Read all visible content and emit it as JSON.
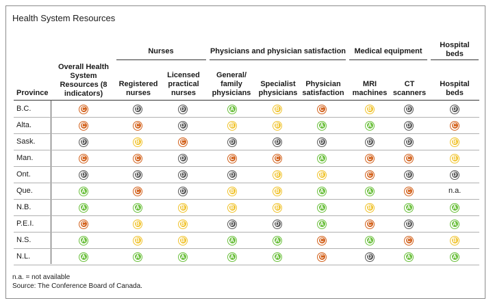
{
  "title": "Health System Resources",
  "groups": {
    "nurses": "Nurses",
    "physicians": "Physicians and physician satisfaction",
    "equipment": "Medical equipment",
    "hospital": "Hospital beds"
  },
  "columns": {
    "province": "Province",
    "overall": "Overall Health System Resources (8 indicators)",
    "registered": "Registered nurses",
    "licensed": "Licensed practical nurses",
    "general": "General/ family physicians",
    "specialist": "Specialist physicians",
    "satisfaction": "Physician satisfaction",
    "mri": "MRI machines",
    "ct": "CT scanners",
    "beds": "Hospital beds"
  },
  "colors": {
    "A": "#6abf3b",
    "B": "#f0c229",
    "C": "#d2601a",
    "D": "#555555"
  },
  "rows": [
    {
      "province": "B.C.",
      "grades": [
        "C",
        "D",
        "D",
        "A",
        "B",
        "C",
        "B",
        "D",
        "D"
      ]
    },
    {
      "province": "Alta.",
      "grades": [
        "C",
        "C",
        "D",
        "B",
        "B",
        "A",
        "A",
        "D",
        "C"
      ]
    },
    {
      "province": "Sask.",
      "grades": [
        "D",
        "B",
        "C",
        "D",
        "D",
        "D",
        "D",
        "D",
        "B"
      ]
    },
    {
      "province": "Man.",
      "grades": [
        "C",
        "C",
        "D",
        "C",
        "C",
        "A",
        "C",
        "C",
        "B"
      ]
    },
    {
      "province": "Ont.",
      "grades": [
        "D",
        "D",
        "D",
        "D",
        "B",
        "B",
        "C",
        "D",
        "D"
      ]
    },
    {
      "province": "Que.",
      "grades": [
        "A",
        "C",
        "D",
        "B",
        "B",
        "A",
        "A",
        "C",
        "n.a."
      ]
    },
    {
      "province": "N.B.",
      "grades": [
        "A",
        "A",
        "B",
        "B",
        "B",
        "A",
        "B",
        "A",
        "A"
      ]
    },
    {
      "province": "P.E.I.",
      "grades": [
        "C",
        "B",
        "B",
        "D",
        "D",
        "A",
        "C",
        "D",
        "A"
      ]
    },
    {
      "province": "N.S.",
      "grades": [
        "A",
        "B",
        "B",
        "A",
        "A",
        "C",
        "A",
        "C",
        "B"
      ]
    },
    {
      "province": "N.L.",
      "grades": [
        "A",
        "A",
        "A",
        "A",
        "A",
        "C",
        "D",
        "A",
        "A"
      ]
    }
  ],
  "footnotes": {
    "na": "n.a. = not available",
    "source": "Source: The Conference Board of Canada."
  }
}
